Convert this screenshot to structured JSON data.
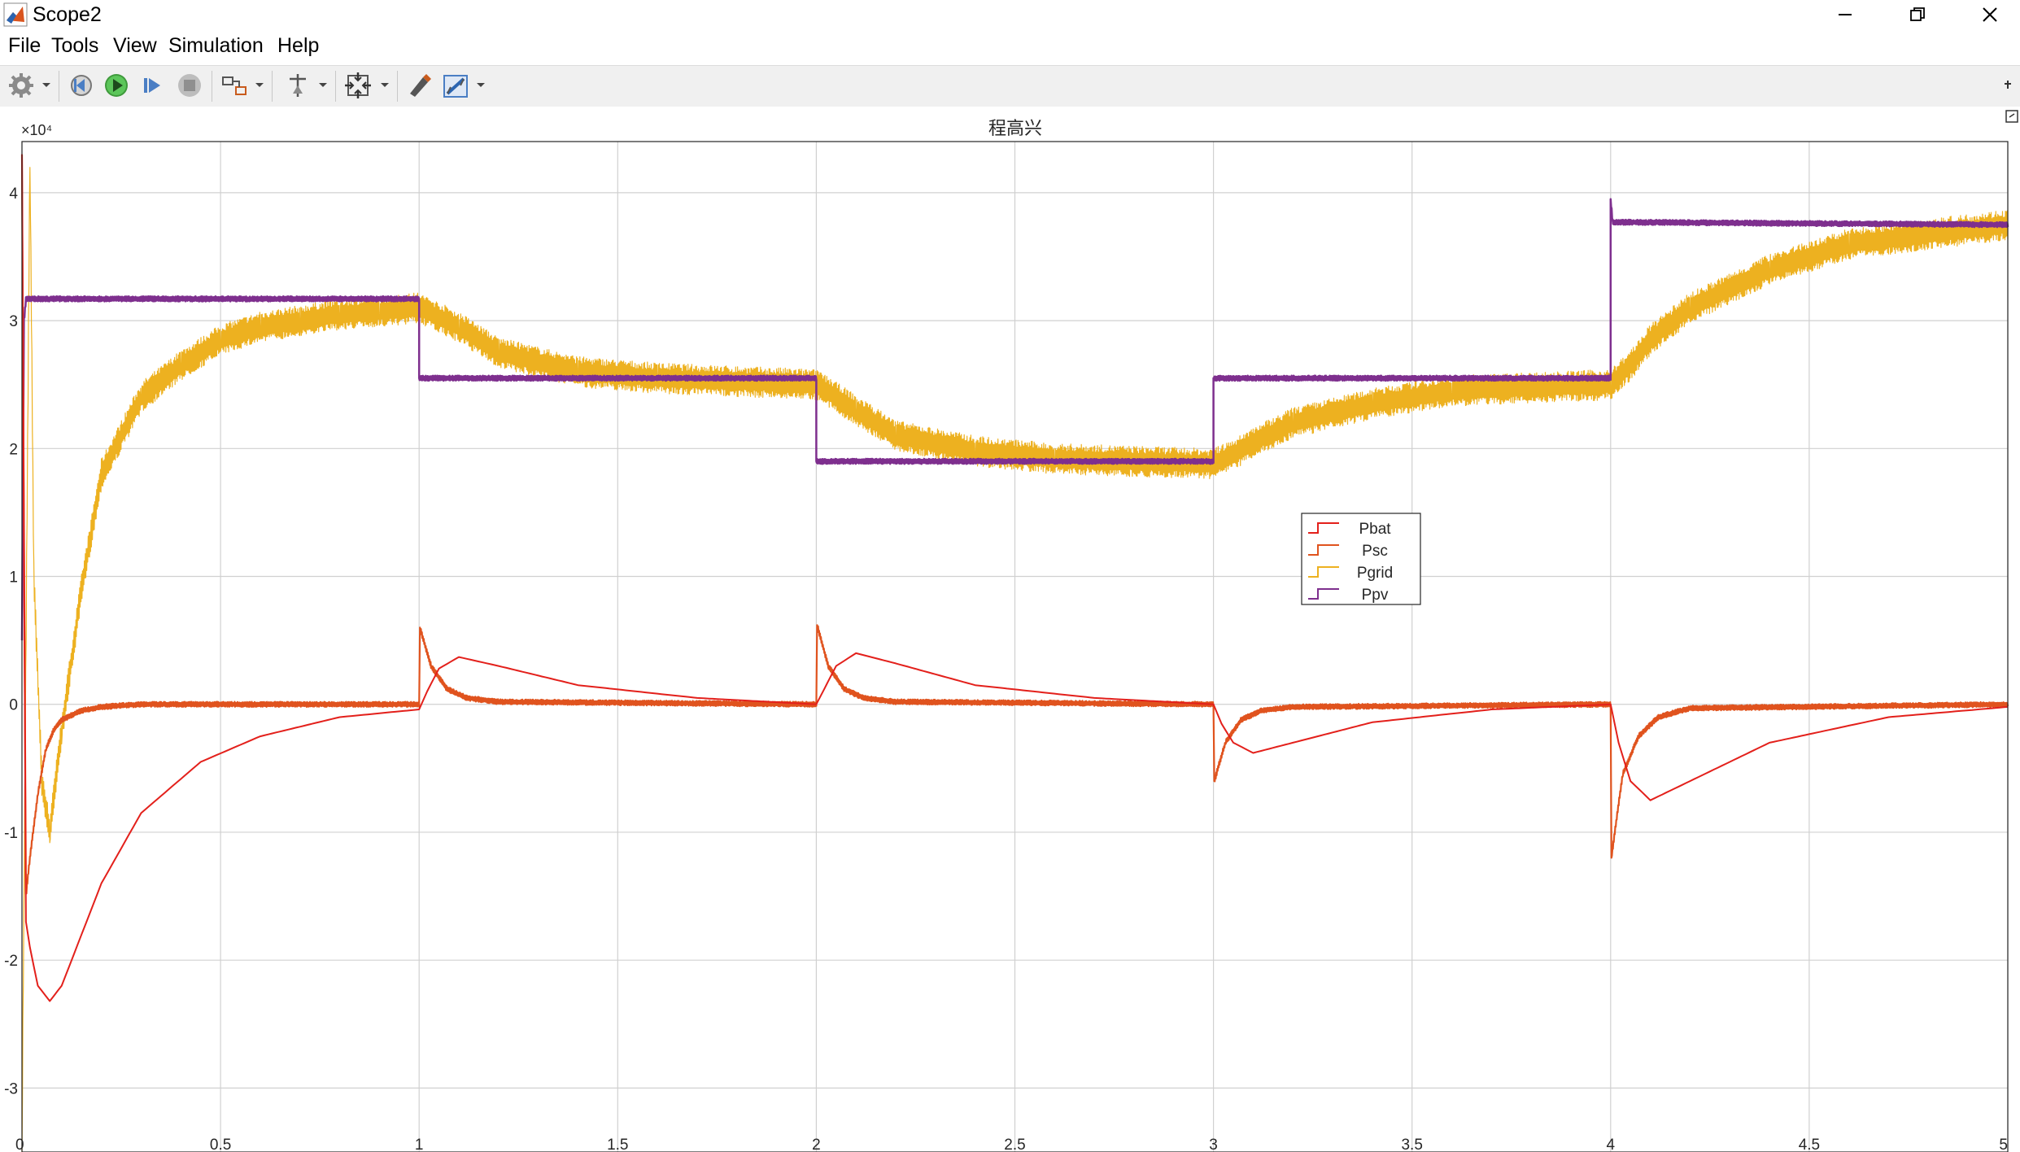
{
  "window": {
    "title": "Scope2"
  },
  "menu": [
    "File",
    "Tools",
    "View",
    "Simulation",
    "Help"
  ],
  "toolbar": {
    "icons": [
      "gear-icon",
      "restore-step-back-icon",
      "run-icon",
      "step-forward-icon",
      "stop-icon",
      "highlight-block-icon",
      "data-cursor-icon",
      "zoom-fit-icon",
      "style-icon",
      "measure-icon"
    ]
  },
  "colors": {
    "Pbat": "#e3201b",
    "Psc": "#e0531e",
    "Pgrid": "#edb120",
    "Ppv": "#7e2f8e"
  },
  "chart_data": {
    "type": "line",
    "title": "程高兴",
    "y_exponent": "×10⁴",
    "xlabel": "",
    "ylabel": "",
    "xlim": [
      0,
      5
    ],
    "ylim": [
      -3.5,
      4.4
    ],
    "xticks": [
      "0",
      "0.5",
      "1",
      "1.5",
      "2",
      "2.5",
      "3",
      "3.5",
      "4",
      "4.5",
      "5"
    ],
    "yticks": [
      "-3",
      "-2",
      "-1",
      "0",
      "1",
      "2",
      "3",
      "4"
    ],
    "grid": true,
    "legend_position": "center-right",
    "series": [
      {
        "name": "Pbat",
        "x": [
          0,
          0.01,
          0.02,
          0.04,
          0.07,
          0.1,
          0.15,
          0.2,
          0.3,
          0.45,
          0.6,
          0.8,
          1.0,
          1.02,
          1.05,
          1.1,
          1.2,
          1.4,
          1.7,
          2.0,
          2.02,
          2.05,
          2.1,
          2.2,
          2.4,
          2.7,
          3.0,
          3.02,
          3.05,
          3.1,
          3.2,
          3.4,
          3.7,
          4.0,
          4.02,
          4.05,
          4.1,
          4.2,
          4.4,
          4.7,
          5.0
        ],
        "y": [
          4.3,
          -1.7,
          -1.9,
          -2.2,
          -2.32,
          -2.2,
          -1.8,
          -1.4,
          -0.85,
          -0.45,
          -0.25,
          -0.1,
          -0.04,
          0.1,
          0.28,
          0.37,
          0.3,
          0.15,
          0.05,
          0.0,
          0.12,
          0.3,
          0.4,
          0.32,
          0.15,
          0.05,
          0.0,
          -0.15,
          -0.3,
          -0.38,
          -0.3,
          -0.14,
          -0.04,
          0.0,
          -0.3,
          -0.6,
          -0.75,
          -0.6,
          -0.3,
          -0.1,
          -0.02
        ]
      },
      {
        "name": "Psc",
        "x": [
          0,
          0.01,
          0.02,
          0.04,
          0.06,
          0.08,
          0.1,
          0.15,
          0.2,
          0.3,
          1.0,
          1.002,
          1.03,
          1.07,
          1.12,
          1.2,
          2.0,
          2.002,
          2.03,
          2.07,
          2.12,
          2.2,
          3.0,
          3.002,
          3.03,
          3.07,
          3.12,
          3.2,
          4.0,
          4.002,
          4.03,
          4.07,
          4.12,
          4.2,
          5.0
        ],
        "y": [
          4.3,
          -1.5,
          -1.2,
          -0.7,
          -0.35,
          -0.2,
          -0.12,
          -0.05,
          -0.02,
          0.0,
          0.0,
          0.6,
          0.3,
          0.12,
          0.05,
          0.02,
          0.0,
          0.62,
          0.3,
          0.12,
          0.05,
          0.02,
          0.0,
          -0.6,
          -0.3,
          -0.12,
          -0.05,
          -0.02,
          0.0,
          -1.2,
          -0.55,
          -0.25,
          -0.1,
          -0.03,
          0.0
        ]
      },
      {
        "name": "Pgrid",
        "x": [
          0,
          0.02,
          0.03,
          0.05,
          0.07,
          0.1,
          0.15,
          0.2,
          0.3,
          0.4,
          0.5,
          0.6,
          0.7,
          0.8,
          0.9,
          1.0,
          1.1,
          1.2,
          1.4,
          1.6,
          2.0,
          2.1,
          2.2,
          2.4,
          2.6,
          3.0,
          3.05,
          3.1,
          3.2,
          3.4,
          3.6,
          4.0,
          4.05,
          4.1,
          4.2,
          4.4,
          4.6,
          5.0
        ],
        "y": [
          -3.5,
          4.3,
          1.0,
          -0.6,
          -1.0,
          -0.2,
          0.9,
          1.8,
          2.4,
          2.65,
          2.85,
          2.95,
          3.0,
          3.05,
          3.07,
          3.1,
          2.95,
          2.75,
          2.6,
          2.55,
          2.5,
          2.3,
          2.1,
          1.98,
          1.92,
          1.88,
          1.95,
          2.05,
          2.2,
          2.35,
          2.45,
          2.5,
          2.65,
          2.85,
          3.1,
          3.4,
          3.6,
          3.75
        ]
      },
      {
        "name": "Ppv",
        "x": [
          0,
          0.005,
          0.01,
          1.0,
          1.0,
          2.0,
          2.0,
          3.0,
          3.0,
          4.0,
          4.0,
          4.005,
          5.0
        ],
        "y": [
          0.5,
          3.0,
          3.17,
          3.17,
          2.55,
          2.55,
          1.9,
          1.9,
          2.55,
          2.55,
          3.95,
          3.77,
          3.75
        ]
      }
    ]
  }
}
